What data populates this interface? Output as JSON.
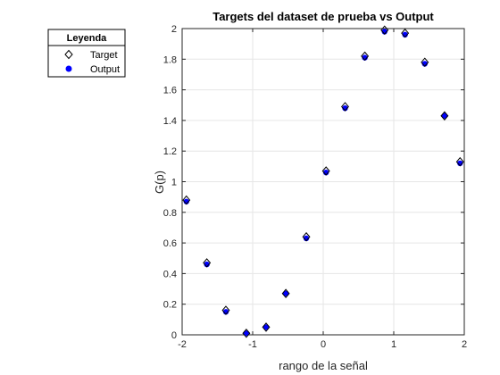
{
  "chart_data": {
    "type": "scatter",
    "title": "Targets del dataset de prueba vs Output",
    "xlabel": "rango de la señal",
    "ylabel": "G(p)",
    "xlim": [
      -2,
      2
    ],
    "ylim": [
      0,
      2
    ],
    "xticks": [
      "-2",
      "-1",
      "0",
      "1",
      "2"
    ],
    "yticks": [
      "0",
      "0.2",
      "0.4",
      "0.6",
      "0.8",
      "1",
      "1.2",
      "1.4",
      "1.6",
      "1.8",
      "2"
    ],
    "grid": true,
    "legend": {
      "title": "Leyenda",
      "placement": "outside-top-left",
      "entries": [
        "Target",
        "Output"
      ]
    },
    "series": [
      {
        "name": "Target",
        "marker": "diamond-open",
        "color": "#000000",
        "x": [
          -1.94,
          -1.65,
          -1.38,
          -1.09,
          -0.81,
          -0.53,
          -0.24,
          0.04,
          0.31,
          0.59,
          0.87,
          1.16,
          1.44,
          1.72,
          1.94
        ],
        "y": [
          0.88,
          0.47,
          0.16,
          0.01,
          0.05,
          0.27,
          0.64,
          1.07,
          1.49,
          1.82,
          1.99,
          1.97,
          1.78,
          1.43,
          1.13
        ]
      },
      {
        "name": "Output",
        "marker": "circle-filled",
        "color": "#0000ff",
        "x": [
          -1.94,
          -1.65,
          -1.38,
          -1.09,
          -0.81,
          -0.53,
          -0.24,
          0.04,
          0.31,
          0.59,
          0.87,
          1.16,
          1.44,
          1.72,
          1.94
        ],
        "y": [
          0.87,
          0.46,
          0.15,
          0.01,
          0.05,
          0.27,
          0.63,
          1.06,
          1.48,
          1.81,
          1.98,
          1.96,
          1.77,
          1.43,
          1.12
        ]
      }
    ]
  }
}
